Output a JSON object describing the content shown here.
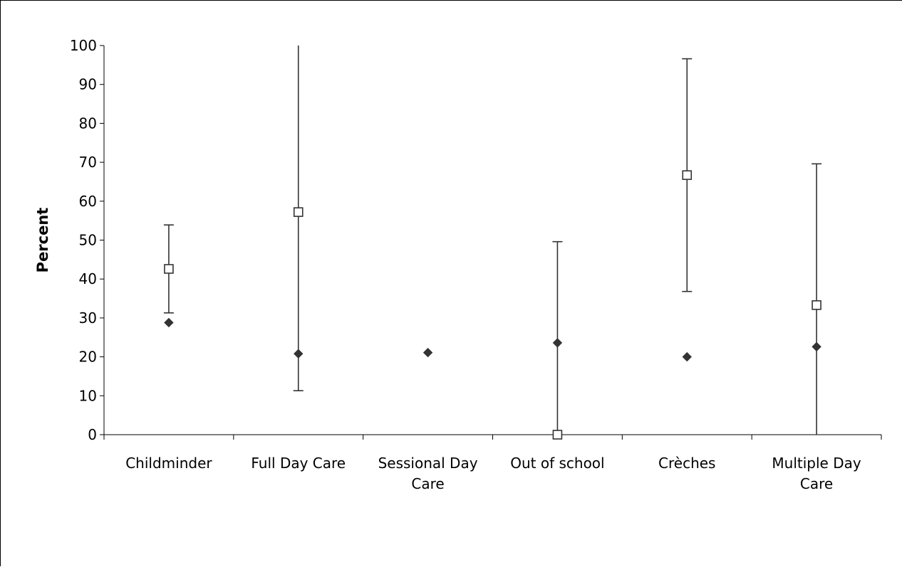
{
  "chart_data": {
    "type": "scatter",
    "title": "",
    "xlabel": "",
    "ylabel": "Percent",
    "ylim": [
      0,
      100
    ],
    "yticks": [
      "0",
      "10",
      "20",
      "30",
      "40",
      "50",
      "60",
      "70",
      "80",
      "90",
      "100"
    ],
    "grid": false,
    "legend": "none",
    "categories": [
      [
        "Childminder"
      ],
      [
        "Full Day Care"
      ],
      [
        "Sessional Day",
        "Care"
      ],
      [
        "Out of school"
      ],
      [
        "Crèches"
      ],
      [
        "Multiple Day",
        "Care"
      ]
    ],
    "series": [
      {
        "marker": "diamond-filled",
        "color": "#333333",
        "values": [
          28.8,
          20.8,
          21.1,
          23.6,
          20.0,
          22.6
        ]
      },
      {
        "marker": "square-open",
        "color": "#333333",
        "values": [
          42.6,
          57.2,
          null,
          0.0,
          66.7,
          33.3
        ],
        "error_low": [
          31.3,
          11.3,
          null,
          0.0,
          36.8,
          0.0
        ],
        "error_high": [
          53.9,
          100,
          null,
          49.6,
          96.6,
          69.6
        ]
      }
    ]
  }
}
